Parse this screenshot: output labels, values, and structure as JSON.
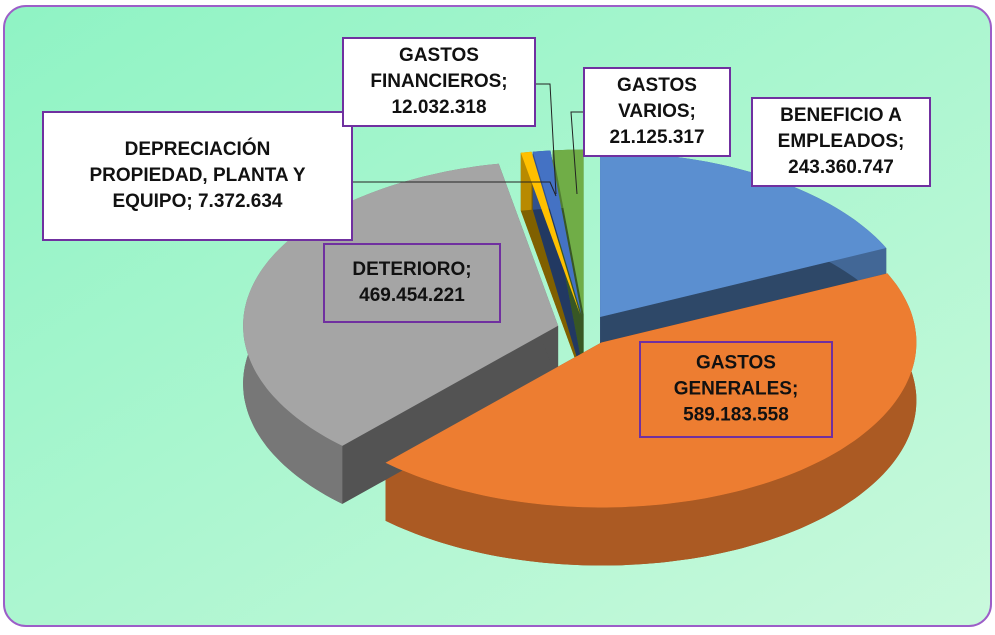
{
  "chart_data": {
    "type": "pie",
    "values": [
      243360747,
      589183558,
      469454221,
      7372634,
      12032318,
      21125317
    ],
    "value_labels": [
      [
        "BENEFICIO A",
        "EMPLEADOS;",
        "243.360.747"
      ],
      [
        "GASTOS",
        "GENERALES;",
        "589.183.558"
      ],
      [
        "DETERIORO;",
        "469.454.221"
      ],
      [
        "DEPRECIACIÓN",
        "PROPIEDAD, PLANTA Y",
        "EQUIPO;  7.372.634"
      ],
      [
        "GASTOS",
        "FINANCIEROS;",
        "12.032.318"
      ],
      [
        "GASTOS",
        "VARIOS;",
        "21.125.317"
      ]
    ],
    "colors": [
      "#5b8fd0",
      "#ed7d31",
      "#a5a5a5",
      "#ffc000",
      "#4472c4",
      "#70ad47"
    ]
  }
}
